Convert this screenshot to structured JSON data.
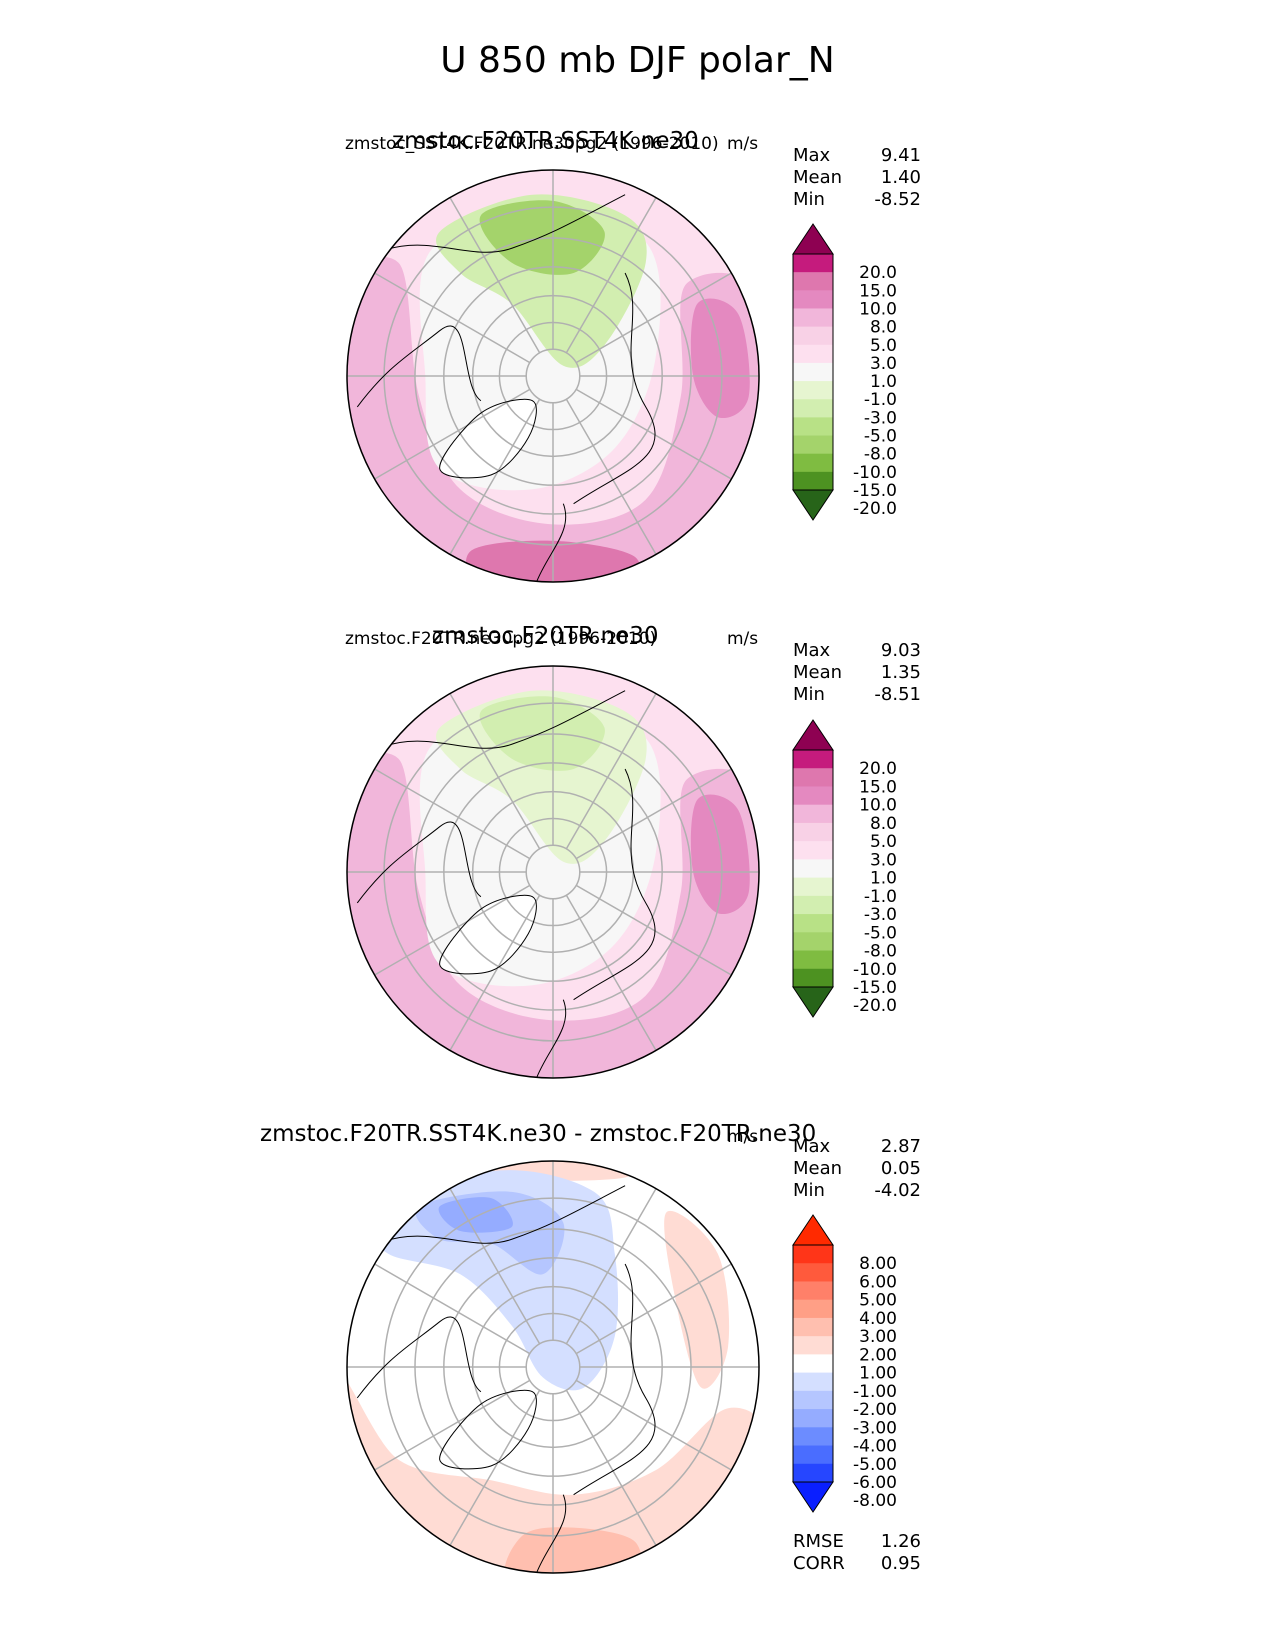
{
  "title": "U 850 mb DJF polar_N",
  "colors": {
    "test_ref": [
      "#276419",
      "#4d9221",
      "#7fbc41",
      "#a4d36b",
      "#b8e186",
      "#d2eeb0",
      "#e6f5d0",
      "#f7f7f7",
      "#fde0ef",
      "#f8d1e6",
      "#f1b6da",
      "#e489c0",
      "#de77ae",
      "#c51b7d",
      "#8e0152"
    ],
    "diff": [
      "#0a1fff",
      "#2646ff",
      "#4a6dff",
      "#6c8cff",
      "#95acff",
      "#b5c6ff",
      "#d4dfff",
      "#ffffff",
      "#ffdcd4",
      "#ffbfaf",
      "#ff9f86",
      "#ff8069",
      "#ff5a3c",
      "#ff3518",
      "#ff2a00"
    ]
  },
  "chart_data": [
    {
      "type": "heatmap",
      "projection": "north-polar-stereographic",
      "title": "zmstoc.F20TR.SST4K.ne30",
      "subtitle": "zmstoc_SST4K.F20TR.ne30pg2 (1996-2010)",
      "units": "m/s",
      "stats": [
        {
          "label": "Max",
          "value": "9.41"
        },
        {
          "label": "Mean",
          "value": "1.40"
        },
        {
          "label": "Min",
          "value": "-8.52"
        }
      ],
      "colorbar_levels": [
        "20.0",
        "15.0",
        "10.0",
        "8.0",
        "5.0",
        "3.0",
        "1.0",
        "-1.0",
        "-3.0",
        "-5.0",
        "-8.0",
        "-10.0",
        "-15.0",
        "-20.0"
      ],
      "colorbar_extend": "both"
    },
    {
      "type": "heatmap",
      "projection": "north-polar-stereographic",
      "title": "zmstoc.F20TR.ne30",
      "subtitle": "zmstoc.F20TR.ne30pg2 (1996-2010)",
      "units": "m/s",
      "stats": [
        {
          "label": "Max",
          "value": "9.03"
        },
        {
          "label": "Mean",
          "value": "1.35"
        },
        {
          "label": "Min",
          "value": "-8.51"
        }
      ],
      "colorbar_levels": [
        "20.0",
        "15.0",
        "10.0",
        "8.0",
        "5.0",
        "3.0",
        "1.0",
        "-1.0",
        "-3.0",
        "-5.0",
        "-8.0",
        "-10.0",
        "-15.0",
        "-20.0"
      ],
      "colorbar_extend": "both"
    },
    {
      "type": "heatmap",
      "projection": "north-polar-stereographic",
      "title": "zmstoc.F20TR.SST4K.ne30 - zmstoc.F20TR.ne30",
      "units": "m/s",
      "stats": [
        {
          "label": "Max",
          "value": "2.87"
        },
        {
          "label": "Mean",
          "value": "0.05"
        },
        {
          "label": "Min",
          "value": "-4.02"
        }
      ],
      "colorbar_levels": [
        "8.00",
        "6.00",
        "5.00",
        "4.00",
        "3.00",
        "2.00",
        "1.00",
        "-1.00",
        "-2.00",
        "-3.00",
        "-4.00",
        "-5.00",
        "-6.00",
        "-8.00"
      ],
      "colorbar_extend": "both",
      "metrics": [
        {
          "label": "RMSE",
          "value": "1.26"
        },
        {
          "label": "CORR",
          "value": "0.95"
        }
      ]
    }
  ]
}
